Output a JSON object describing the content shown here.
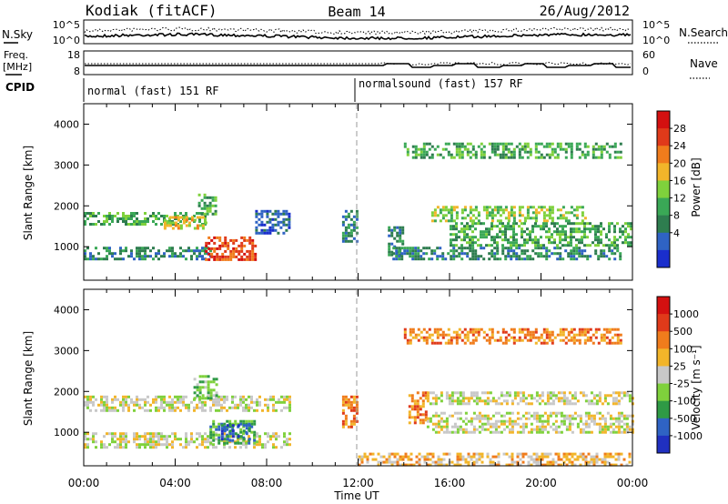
{
  "header": {
    "station": "Kodiak (fitACF)",
    "beam": "Beam 14",
    "date": "26/Aug/2012"
  },
  "params": {
    "nsky_label": "N.Sky",
    "nsearch_label": "N.Search",
    "freq_label_top": "Freq.",
    "freq_label_unit": "[MHz]",
    "nave_label": "Nave",
    "cpid_label": "CPID",
    "noise_ticks_left": [
      "10^5",
      "10^0"
    ],
    "noise_ticks_right": [
      "10^5",
      "10^0"
    ],
    "freq_ticks": [
      "18",
      "8"
    ],
    "nave_ticks": [
      "60",
      "0"
    ],
    "cpid_segments": [
      {
        "start_hour": 0,
        "label": "normal (fast) 151 RF"
      },
      {
        "start_hour": 12,
        "label": "normalsound (fast) 157 RF"
      }
    ]
  },
  "colors": {
    "power": [
      "#1a2ecc",
      "#2f63c4",
      "#2e7d4f",
      "#3aa856",
      "#7fd13c",
      "#f2b52a",
      "#f07c1c",
      "#e03a1a",
      "#d41010"
    ],
    "velocity": [
      "#2030c0",
      "#2f63c4",
      "#2f9a45",
      "#7fd13c",
      "#c8c8c8",
      "#f2b52a",
      "#f07c1c",
      "#e03a1a",
      "#d41010"
    ]
  },
  "chart_data": [
    {
      "type": "heatmap",
      "name": "power",
      "ylabel": "Slant Range [km]",
      "xlim": [
        0,
        24
      ],
      "ylim": [
        180,
        4500
      ],
      "yticks": [
        "1000",
        "2000",
        "3000",
        "4000"
      ],
      "colorbar": {
        "label": "Power [dB]",
        "ticks": [
          "4",
          "8",
          "12",
          "16",
          "20",
          "24",
          "28"
        ]
      },
      "regions": [
        {
          "t0": 0,
          "t1": 5.3,
          "r0": 1550,
          "r1": 1850,
          "level": 3
        },
        {
          "t0": 0,
          "t1": 5.5,
          "r0": 700,
          "r1": 1000,
          "level": 2
        },
        {
          "t0": 3.5,
          "t1": 5.5,
          "r0": 1450,
          "r1": 1750,
          "level": 5
        },
        {
          "t0": 5.3,
          "t1": 7.5,
          "r0": 650,
          "r1": 1250,
          "level": 7
        },
        {
          "t0": 5.0,
          "t1": 5.8,
          "r0": 1800,
          "r1": 2300,
          "level": 3
        },
        {
          "t0": 7.5,
          "t1": 9.0,
          "r0": 1350,
          "r1": 1900,
          "level": 1
        },
        {
          "t0": 11.3,
          "t1": 12.0,
          "r0": 1100,
          "r1": 1900,
          "level": 2
        },
        {
          "t0": 13.3,
          "t1": 14.0,
          "r0": 800,
          "r1": 1500,
          "level": 2
        },
        {
          "t0": 15.2,
          "t1": 22.0,
          "r0": 1650,
          "r1": 2000,
          "level": 4
        },
        {
          "t0": 16.0,
          "t1": 24.0,
          "r0": 1000,
          "r1": 1600,
          "level": 3
        },
        {
          "t0": 13.5,
          "t1": 23.5,
          "r0": 700,
          "r1": 1000,
          "level": 2
        },
        {
          "t0": 14.0,
          "t1": 23.5,
          "r0": 3150,
          "r1": 3550,
          "level": 3
        }
      ]
    },
    {
      "type": "heatmap",
      "name": "velocity",
      "ylabel": "Slant Range [km]",
      "xlabel": "Time UT",
      "xlim": [
        0,
        24
      ],
      "ylim": [
        180,
        4500
      ],
      "xticks": [
        "00:00",
        "04:00",
        "08:00",
        "12:00",
        "16:00",
        "20:00",
        "00:00"
      ],
      "yticks": [
        "1000",
        "2000",
        "3000",
        "4000"
      ],
      "colorbar": {
        "label": "Velocity [m s⁻¹]",
        "ticks": [
          "1000",
          "500",
          "100",
          "25",
          "-25",
          "-100",
          "-500",
          "-1000"
        ]
      },
      "regions": [
        {
          "t0": 0,
          "t1": 9.0,
          "r0": 1550,
          "r1": 1900,
          "level": 4
        },
        {
          "t0": 0,
          "t1": 9.0,
          "r0": 650,
          "r1": 1000,
          "level": 4
        },
        {
          "t0": 5.5,
          "t1": 7.5,
          "r0": 700,
          "r1": 1300,
          "level": 2
        },
        {
          "t0": 6.0,
          "t1": 7.2,
          "r0": 800,
          "r1": 1200,
          "level": 1
        },
        {
          "t0": 4.8,
          "t1": 5.8,
          "r0": 1800,
          "r1": 2400,
          "level": 3
        },
        {
          "t0": 11.3,
          "t1": 12.0,
          "r0": 1100,
          "r1": 1900,
          "level": 6
        },
        {
          "t0": 14.2,
          "t1": 15.0,
          "r0": 1200,
          "r1": 2000,
          "level": 6
        },
        {
          "t0": 15.0,
          "t1": 24.0,
          "r0": 1700,
          "r1": 2000,
          "level": 4
        },
        {
          "t0": 15.0,
          "t1": 24.0,
          "r0": 1000,
          "r1": 1500,
          "level": 4
        },
        {
          "t0": 14.0,
          "t1": 23.5,
          "r0": 3150,
          "r1": 3550,
          "level": 6
        },
        {
          "t0": 12.0,
          "t1": 24.0,
          "r0": 200,
          "r1": 500,
          "level": 5
        }
      ]
    }
  ]
}
